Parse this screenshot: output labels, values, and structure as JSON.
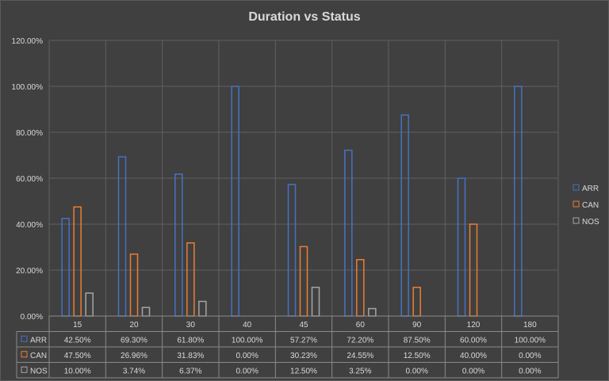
{
  "chart_data": {
    "type": "bar",
    "title": "Duration vs Status",
    "categories": [
      "15",
      "20",
      "30",
      "40",
      "45",
      "60",
      "90",
      "120",
      "180"
    ],
    "ylim": [
      0,
      1.2
    ],
    "y_ticks": [
      "0.00%",
      "20.00%",
      "40.00%",
      "60.00%",
      "80.00%",
      "100.00%",
      "120.00%"
    ],
    "grid": true,
    "legend_position": "right",
    "series": [
      {
        "name": "ARR",
        "color": "#4472c4",
        "values": [
          0.425,
          0.693,
          0.618,
          1.0,
          0.5727,
          0.722,
          0.875,
          0.6,
          1.0
        ],
        "labels": [
          "42.50%",
          "69.30%",
          "61.80%",
          "100.00%",
          "57.27%",
          "72.20%",
          "87.50%",
          "60.00%",
          "100.00%"
        ]
      },
      {
        "name": "CAN",
        "color": "#ed7d31",
        "values": [
          0.475,
          0.2696,
          0.3183,
          0.0,
          0.3023,
          0.2455,
          0.125,
          0.4,
          0.0
        ],
        "labels": [
          "47.50%",
          "26.96%",
          "31.83%",
          "0.00%",
          "30.23%",
          "24.55%",
          "12.50%",
          "40.00%",
          "0.00%"
        ]
      },
      {
        "name": "NOS",
        "color": "#a5a5a5",
        "values": [
          0.1,
          0.0374,
          0.0637,
          0.0,
          0.125,
          0.0325,
          0.0,
          0.0,
          0.0
        ],
        "labels": [
          "10.00%",
          "3.74%",
          "6.37%",
          "0.00%",
          "12.50%",
          "3.25%",
          "0.00%",
          "0.00%",
          "0.00%"
        ]
      }
    ]
  }
}
